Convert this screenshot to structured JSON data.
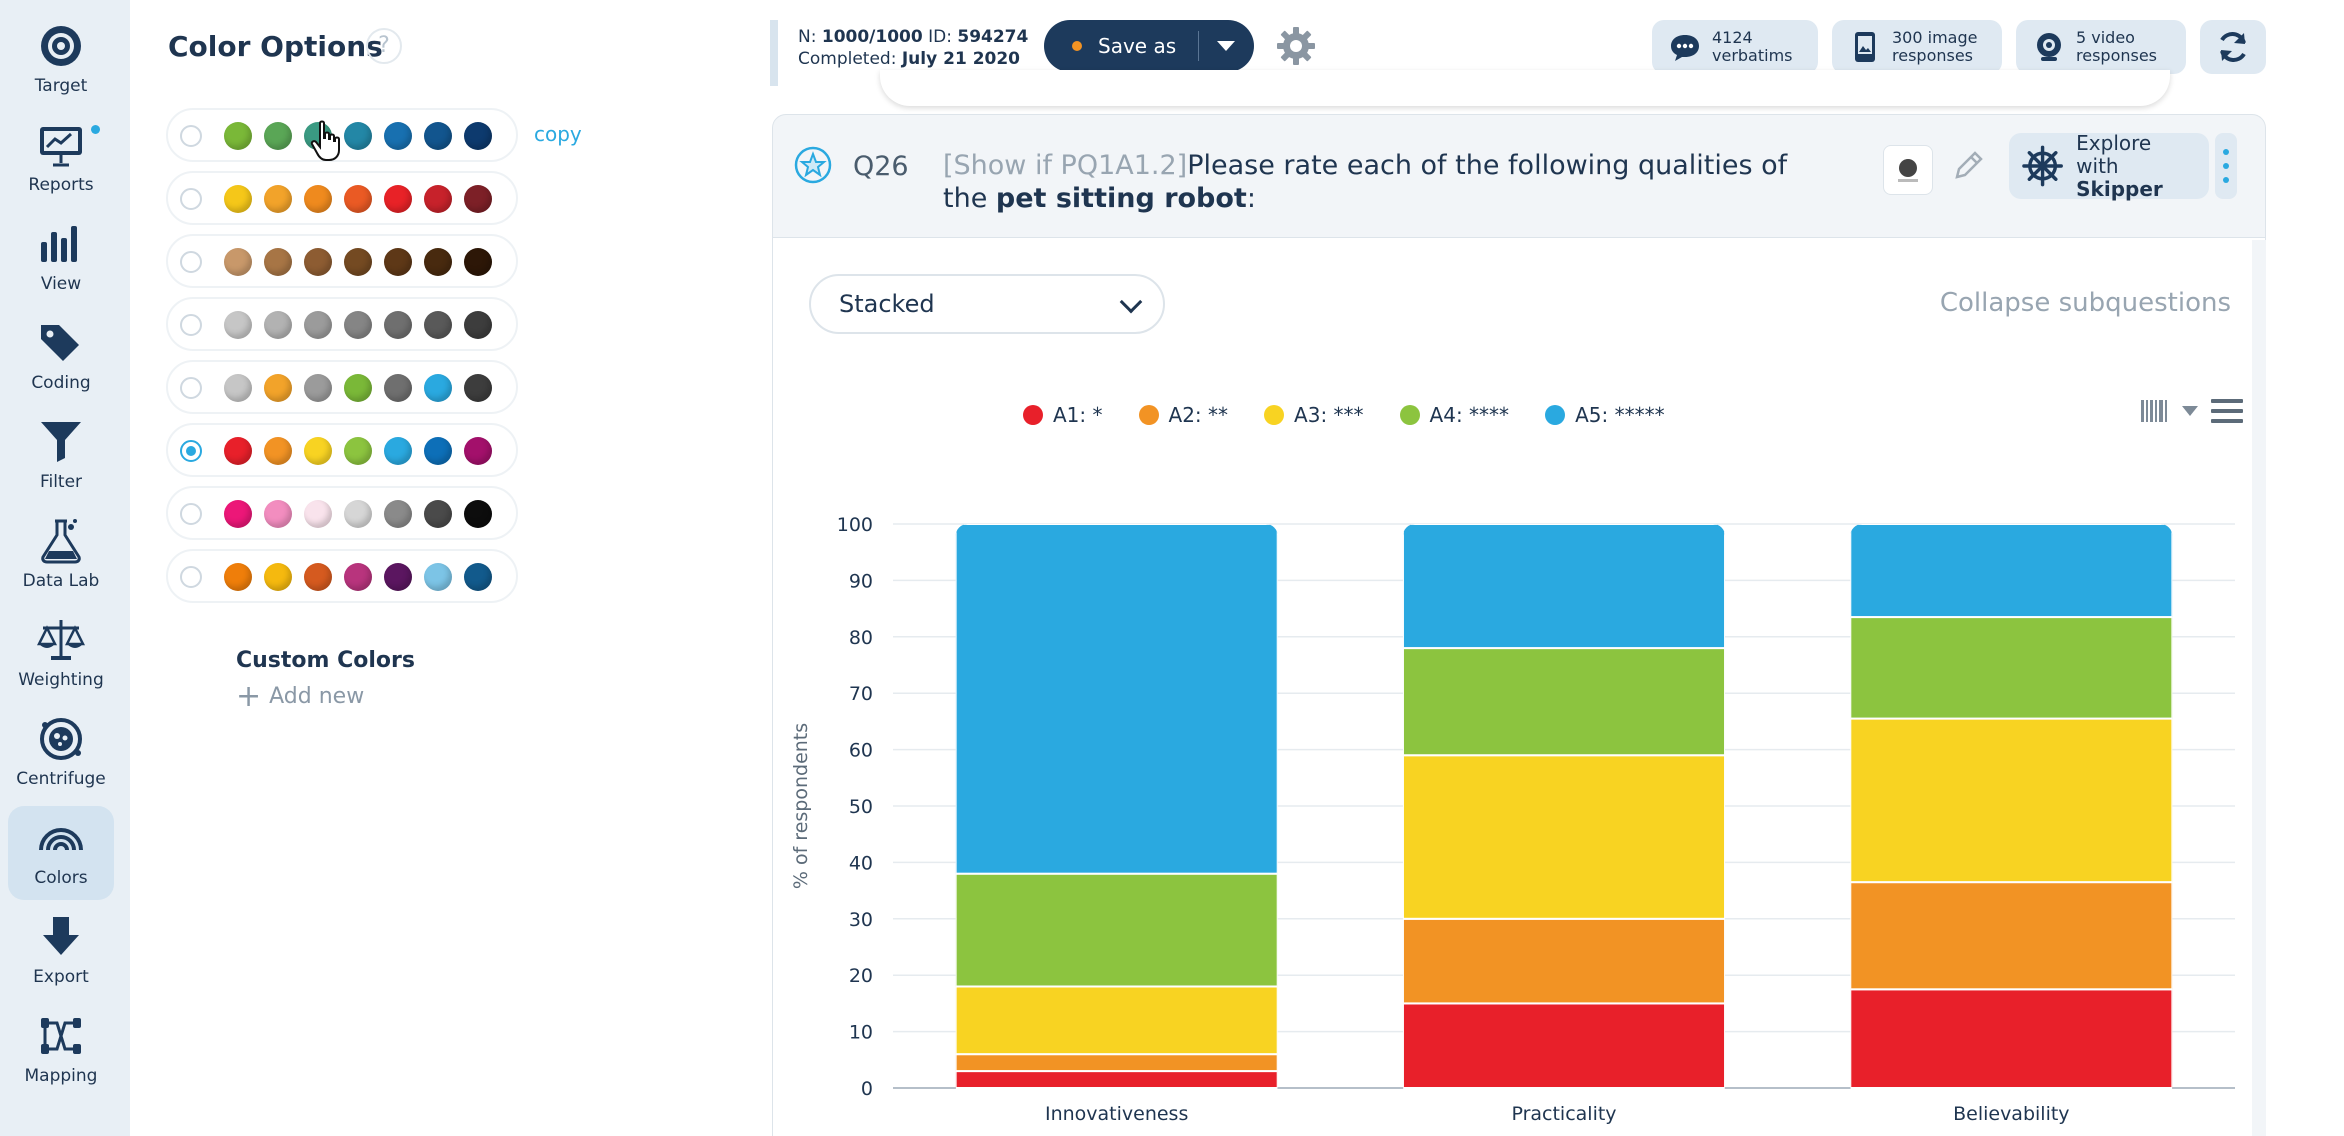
{
  "nav": {
    "items": [
      {
        "id": "target",
        "label": "Target",
        "icon": "target-icon"
      },
      {
        "id": "reports",
        "label": "Reports",
        "icon": "presentation-icon"
      },
      {
        "id": "view",
        "label": "View",
        "icon": "bar-chart-icon"
      },
      {
        "id": "coding",
        "label": "Coding",
        "icon": "tags-icon"
      },
      {
        "id": "filter",
        "label": "Filter",
        "icon": "funnel-icon"
      },
      {
        "id": "datalab",
        "label": "Data Lab",
        "icon": "flask-icon"
      },
      {
        "id": "weighting",
        "label": "Weighting",
        "icon": "scales-icon"
      },
      {
        "id": "centrifuge",
        "label": "Centrifuge",
        "icon": "centrifuge-icon"
      },
      {
        "id": "colors",
        "label": "Colors",
        "icon": "rainbow-icon",
        "active": true
      },
      {
        "id": "export",
        "label": "Export",
        "icon": "download-arrow-icon"
      },
      {
        "id": "mapping",
        "label": "Mapping",
        "icon": "mapping-icon"
      }
    ]
  },
  "color_options": {
    "title": "Color Options",
    "help": "?",
    "copy_label": "copy",
    "selected_index": 5,
    "palettes": [
      [
        "#7ab838",
        "#5aa656",
        "#3a9a82",
        "#2387a6",
        "#1870b0",
        "#12558e",
        "#0d3a6e"
      ],
      [
        "#f5c719",
        "#f2a32a",
        "#ef8a1e",
        "#ea5a24",
        "#e82227",
        "#c7222b",
        "#7d2027"
      ],
      [
        "#c8986a",
        "#a77545",
        "#8d5c32",
        "#744a22",
        "#5e3817",
        "#482a0f",
        "#2d1707"
      ],
      [
        "#c6c6c6",
        "#b2b2b2",
        "#9b9b9b",
        "#858585",
        "#6f6f6f",
        "#595959",
        "#3d3d3d"
      ],
      [
        "#c6c6c6",
        "#f2a32a",
        "#9b9b9b",
        "#7ab838",
        "#6f6f6f",
        "#2aa9e0",
        "#3d3d3d"
      ],
      [
        "#e8202a",
        "#f29324",
        "#f8d322",
        "#8cc43f",
        "#2aa9e0",
        "#0d6fb8",
        "#a3106b"
      ],
      [
        "#ec1778",
        "#f28dbf",
        "#f9e3ec",
        "#d6d6d6",
        "#8a8a8a",
        "#4a4a4a",
        "#0d0d0d"
      ],
      [
        "#ef7e0a",
        "#f5b90f",
        "#d55a1f",
        "#b8347d",
        "#5b1660",
        "#7cc4e6",
        "#125a8c"
      ]
    ],
    "custom_title": "Custom Colors",
    "add_new": "Add new"
  },
  "topbar": {
    "n_label": "N:",
    "n_value": "1000/1000",
    "id_label": "ID:",
    "id_value": "594274",
    "completed_label": "Completed:",
    "completed_value": "July 21 2020",
    "save_as": "Save as",
    "verbatims_count": "4124",
    "verbatims_label": "verbatims",
    "image_count": "300 image",
    "image_label": "responses",
    "video_count": "5 video",
    "video_label": "responses"
  },
  "question": {
    "number": "Q26",
    "condition": "[Show if PQ1A1.2]",
    "text_before": "Please rate each of the following qualities of the ",
    "text_bold": "pet sitting robot",
    "text_after": ":",
    "skipper_line1": "Explore",
    "skipper_line2_prefix": "with ",
    "skipper_line2_bold": "Skipper"
  },
  "chart_controls": {
    "view_mode": "Stacked",
    "collapse_label": "Collapse subquestions"
  },
  "chart_data": {
    "type": "bar",
    "stacked": true,
    "categories": [
      "Innovativeness",
      "Practicality",
      "Believability"
    ],
    "series": [
      {
        "name": "A1: *",
        "color": "#e8202a",
        "values": [
          3,
          15,
          17.5
        ]
      },
      {
        "name": "A2: **",
        "color": "#f29324",
        "values": [
          3,
          15,
          19
        ]
      },
      {
        "name": "A3: ***",
        "color": "#f8d322",
        "values": [
          12,
          29,
          29
        ]
      },
      {
        "name": "A4: ****",
        "color": "#8cc43f",
        "values": [
          20,
          19,
          18
        ]
      },
      {
        "name": "A5: *****",
        "color": "#2aa9e0",
        "values": [
          62,
          22,
          16.5
        ]
      }
    ],
    "ylabel": "% of respondents",
    "xlabel": "",
    "ylim": [
      0,
      100
    ],
    "yticks": [
      0,
      10,
      20,
      30,
      40,
      50,
      60,
      70,
      80,
      90,
      100
    ],
    "grid": true,
    "legend_position": "top"
  }
}
